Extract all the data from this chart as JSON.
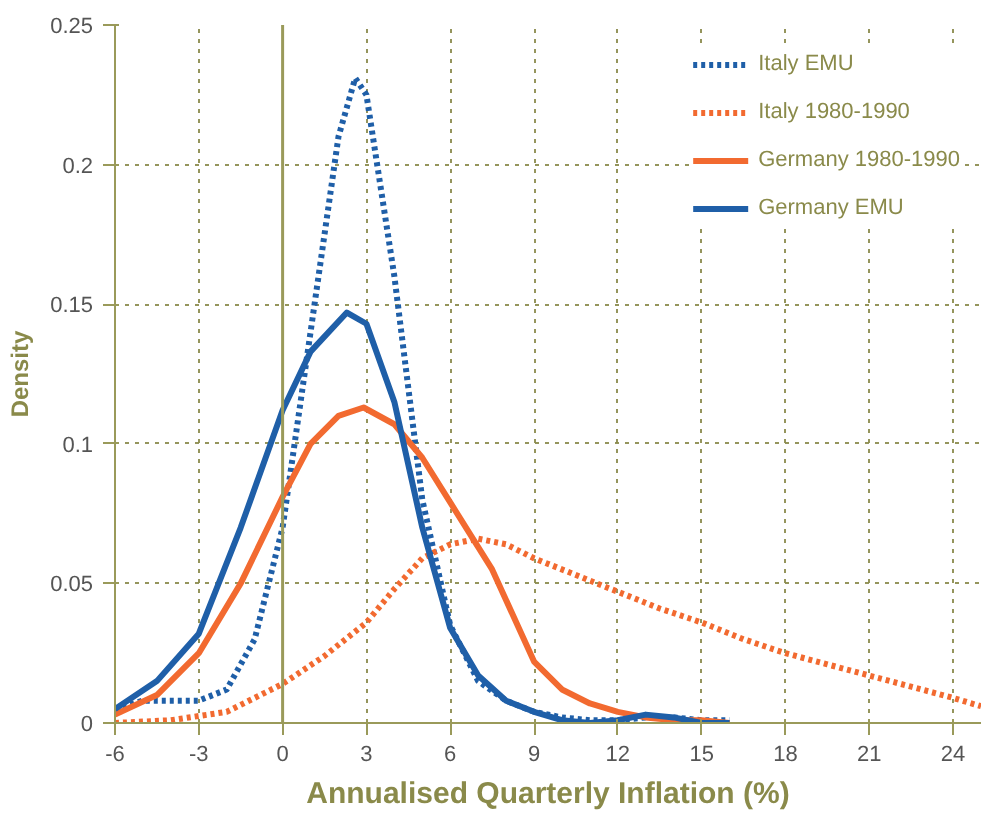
{
  "chart_data": {
    "type": "line",
    "xlabel": "Annualised Quarterly Inflation (%)",
    "ylabel": "Density",
    "xlim": [
      -6,
      25
    ],
    "ylim": [
      0,
      0.25
    ],
    "xticks": [
      -6,
      -3,
      0,
      3,
      6,
      9,
      12,
      15,
      18,
      21,
      24
    ],
    "yticks": [
      0,
      0.05,
      0.1,
      0.15,
      0.2,
      0.25
    ],
    "grid": true,
    "legend": "top right",
    "ref_lines": [
      {
        "axis": "x",
        "value": 0,
        "color": "#9a9a5a",
        "line_style": "solid"
      }
    ],
    "series": [
      {
        "name": "Italy EMU",
        "color": "#1f5fa8",
        "line_style": "dotted",
        "x": [
          -6,
          -5,
          -4,
          -3,
          -2,
          -1,
          0,
          1,
          2,
          2.6,
          3,
          4,
          5,
          6,
          7,
          8,
          9,
          10,
          11,
          12,
          13,
          14,
          15,
          16
        ],
        "values": [
          0.005,
          0.008,
          0.008,
          0.008,
          0.012,
          0.03,
          0.07,
          0.14,
          0.21,
          0.231,
          0.225,
          0.16,
          0.08,
          0.035,
          0.015,
          0.008,
          0.004,
          0.002,
          0.001,
          0.001,
          0.002,
          0.002,
          0.001,
          0.001
        ]
      },
      {
        "name": "Italy 1980-1990",
        "color": "#f26a30",
        "line_style": "dotted",
        "x": [
          -6,
          -4,
          -2,
          0,
          1.5,
          3,
          4,
          5,
          6,
          7,
          8,
          9,
          10.5,
          12,
          13.5,
          15,
          16.5,
          18,
          19.5,
          21,
          22.5,
          24,
          25
        ],
        "values": [
          0,
          0.001,
          0.004,
          0.014,
          0.024,
          0.036,
          0.048,
          0.059,
          0.064,
          0.066,
          0.064,
          0.059,
          0.053,
          0.047,
          0.041,
          0.036,
          0.03,
          0.025,
          0.021,
          0.017,
          0.013,
          0.009,
          0.006
        ]
      },
      {
        "name": "Germany 1980-1990",
        "color": "#f26a30",
        "line_style": "solid",
        "x": [
          -6,
          -4.5,
          -3,
          -1.5,
          0,
          1,
          2,
          2.9,
          4,
          5,
          6,
          7.5,
          9,
          10,
          11,
          12,
          13,
          14,
          15,
          16
        ],
        "values": [
          0.003,
          0.01,
          0.025,
          0.05,
          0.081,
          0.1,
          0.11,
          0.113,
          0.107,
          0.095,
          0.079,
          0.055,
          0.022,
          0.012,
          0.007,
          0.004,
          0.002,
          0.001,
          0.001,
          0
        ]
      },
      {
        "name": "Germany EMU",
        "color": "#1f5fa8",
        "line_style": "solid",
        "x": [
          -6,
          -4.5,
          -3,
          -1.5,
          0,
          1,
          2.3,
          3,
          4,
          5,
          6,
          7,
          8,
          9,
          10,
          11,
          12,
          13,
          14,
          15,
          16
        ],
        "values": [
          0.005,
          0.015,
          0.032,
          0.07,
          0.112,
          0.133,
          0.147,
          0.143,
          0.115,
          0.07,
          0.034,
          0.017,
          0.008,
          0.004,
          0.001,
          0,
          0.001,
          0.003,
          0.002,
          0,
          0
        ]
      }
    ]
  }
}
